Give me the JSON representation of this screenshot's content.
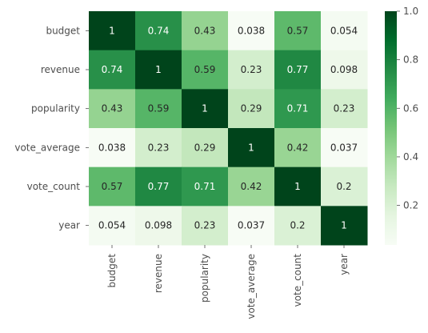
{
  "chart_data": {
    "type": "heatmap",
    "title": "",
    "xlabel": "",
    "ylabel": "",
    "rows": [
      "budget",
      "revenue",
      "popularity",
      "vote_average",
      "vote_count",
      "year"
    ],
    "columns": [
      "budget",
      "revenue",
      "popularity",
      "vote_average",
      "vote_count",
      "year"
    ],
    "values": [
      [
        1,
        0.74,
        0.43,
        0.038,
        0.57,
        0.054
      ],
      [
        0.74,
        1,
        0.59,
        0.23,
        0.77,
        0.098
      ],
      [
        0.43,
        0.59,
        1,
        0.29,
        0.71,
        0.23
      ],
      [
        0.038,
        0.23,
        0.29,
        1,
        0.42,
        0.037
      ],
      [
        0.57,
        0.77,
        0.71,
        0.42,
        1,
        0.2
      ],
      [
        0.054,
        0.098,
        0.23,
        0.037,
        0.2,
        1
      ]
    ],
    "labels": [
      [
        "1",
        "0.74",
        "0.43",
        "0.038",
        "0.57",
        "0.054"
      ],
      [
        "0.74",
        "1",
        "0.59",
        "0.23",
        "0.77",
        "0.098"
      ],
      [
        "0.43",
        "0.59",
        "1",
        "0.29",
        "0.71",
        "0.23"
      ],
      [
        "0.038",
        "0.23",
        "0.29",
        "1",
        "0.42",
        "0.037"
      ],
      [
        "0.57",
        "0.77",
        "0.71",
        "0.42",
        "1",
        "0.2"
      ],
      [
        "0.054",
        "0.098",
        "0.23",
        "0.037",
        "0.2",
        "1"
      ]
    ],
    "colormap": "Greens",
    "colorbar": {
      "range": [
        0.037,
        1.0
      ],
      "ticks": [
        0.2,
        0.4,
        0.6,
        0.8,
        1.0
      ],
      "tick_labels": [
        "0.2",
        "0.4",
        "0.6",
        "0.8",
        "1.0"
      ]
    },
    "colors": {
      "low": "#f7fcf5",
      "high": "#00441b",
      "dark_text": "#262626",
      "light_text": "#ffffff"
    }
  }
}
